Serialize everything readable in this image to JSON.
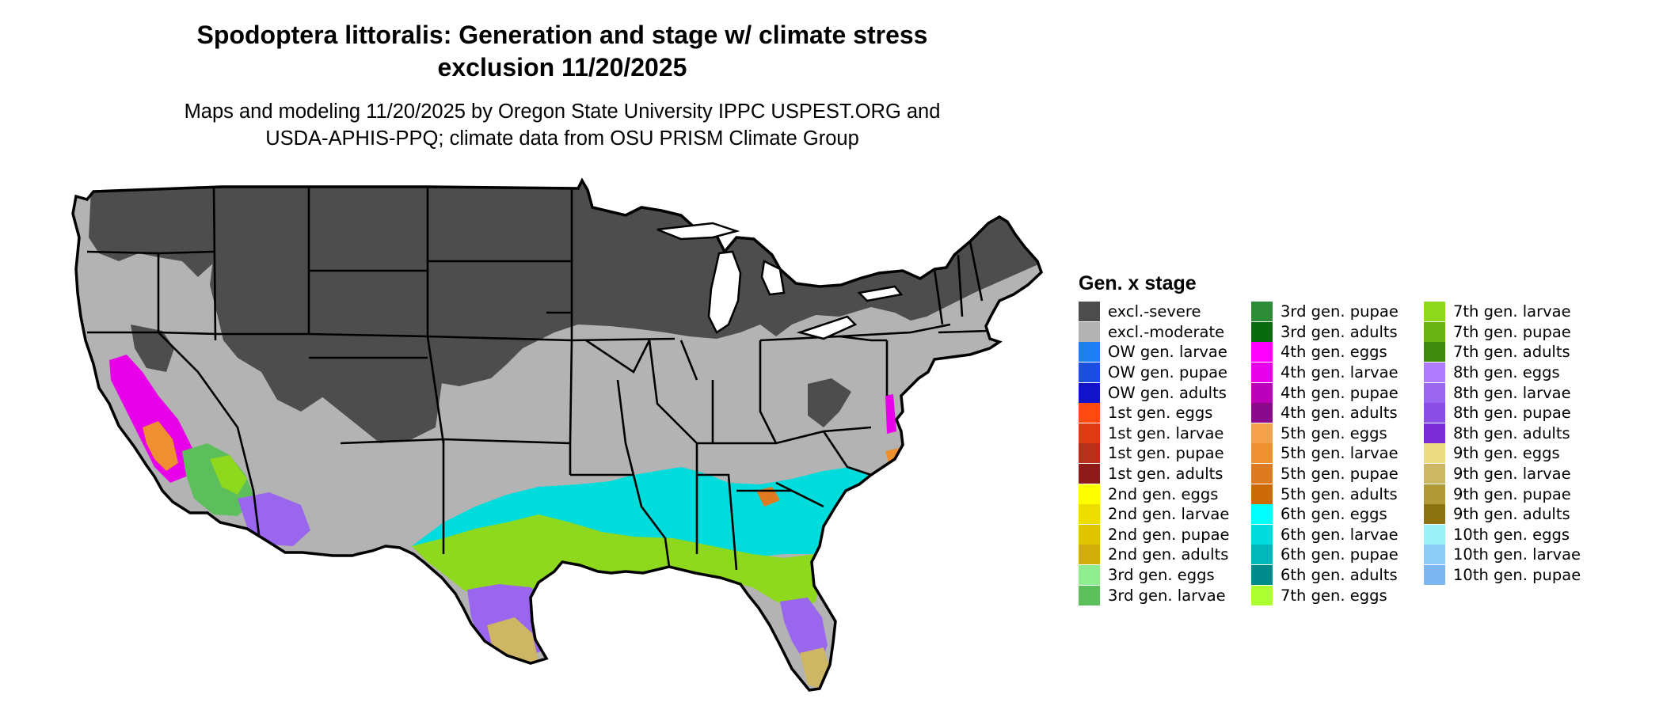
{
  "title_lines": [
    "Spodoptera littoralis: Generation and stage w/ climate stress",
    "exclusion 11/20/2025"
  ],
  "subtitle_lines": [
    "Maps and modeling 11/20/2025 by Oregon State University IPPC USPEST.ORG and",
    "USDA-APHIS-PPQ; climate data from OSU PRISM Climate Group"
  ],
  "legend": {
    "title": "Gen. x stage",
    "columns": [
      [
        {
          "label": "excl.-severe",
          "color": "#4d4d4d"
        },
        {
          "label": "excl.-moderate",
          "color": "#b3b3b3"
        },
        {
          "label": "OW gen. larvae",
          "color": "#1e7ff0"
        },
        {
          "label": "OW gen. pupae",
          "color": "#1c4ee0"
        },
        {
          "label": "OW gen. adults",
          "color": "#1212c8"
        },
        {
          "label": "1st gen. eggs",
          "color": "#ff4a12"
        },
        {
          "label": "1st gen. larvae",
          "color": "#e03a14"
        },
        {
          "label": "1st gen. pupae",
          "color": "#b8301a"
        },
        {
          "label": "1st gen. adults",
          "color": "#8e1a1a"
        },
        {
          "label": "2nd gen. eggs",
          "color": "#ffff00"
        },
        {
          "label": "2nd gen. larvae",
          "color": "#eedd00"
        },
        {
          "label": "2nd gen. pupae",
          "color": "#e0c400"
        },
        {
          "label": "2nd gen. adults",
          "color": "#d1ad0a"
        },
        {
          "label": "3rd gen. eggs",
          "color": "#90ee90"
        },
        {
          "label": "3rd gen. larvae",
          "color": "#5cbf5c"
        }
      ],
      [
        {
          "label": "3rd gen. pupae",
          "color": "#2e8b38"
        },
        {
          "label": "3rd gen. adults",
          "color": "#0a6a10"
        },
        {
          "label": "4th gen. eggs",
          "color": "#ff00ff"
        },
        {
          "label": "4th gen. larvae",
          "color": "#e800e8"
        },
        {
          "label": "4th gen. pupae",
          "color": "#bb00bb"
        },
        {
          "label": "4th gen. adults",
          "color": "#8b0a8b"
        },
        {
          "label": "5th gen. eggs",
          "color": "#f5a04a"
        },
        {
          "label": "5th gen. larvae",
          "color": "#ee8f30"
        },
        {
          "label": "5th gen. pupae",
          "color": "#e07a20"
        },
        {
          "label": "5th gen. adults",
          "color": "#cc6a08"
        },
        {
          "label": "6th gen. eggs",
          "color": "#00ffff"
        },
        {
          "label": "6th gen. larvae",
          "color": "#00dcdc"
        },
        {
          "label": "6th gen. pupae",
          "color": "#00b8b8"
        },
        {
          "label": "6th gen. adults",
          "color": "#008b8b"
        },
        {
          "label": "7th gen. eggs",
          "color": "#adff2f"
        }
      ],
      [
        {
          "label": "7th gen. larvae",
          "color": "#8ed81e"
        },
        {
          "label": "7th gen. pupae",
          "color": "#6cb414"
        },
        {
          "label": "7th gen. adults",
          "color": "#3f8a0c"
        },
        {
          "label": "8th gen. eggs",
          "color": "#b07cff"
        },
        {
          "label": "8th gen. larvae",
          "color": "#9a66ee"
        },
        {
          "label": "8th gen. pupae",
          "color": "#8a4ee6"
        },
        {
          "label": "8th gen. adults",
          "color": "#7a2cd6"
        },
        {
          "label": "9th gen. eggs",
          "color": "#eedc82"
        },
        {
          "label": "9th gen. larvae",
          "color": "#cdb764"
        },
        {
          "label": "9th gen. pupae",
          "color": "#b09a36"
        },
        {
          "label": "9th gen. adults",
          "color": "#8b7410"
        },
        {
          "label": "10th gen. eggs",
          "color": "#9af2f6"
        },
        {
          "label": "10th gen. larvae",
          "color": "#8ccdf6"
        },
        {
          "label": "10th gen. pupae",
          "color": "#7db6f0"
        }
      ]
    ]
  }
}
